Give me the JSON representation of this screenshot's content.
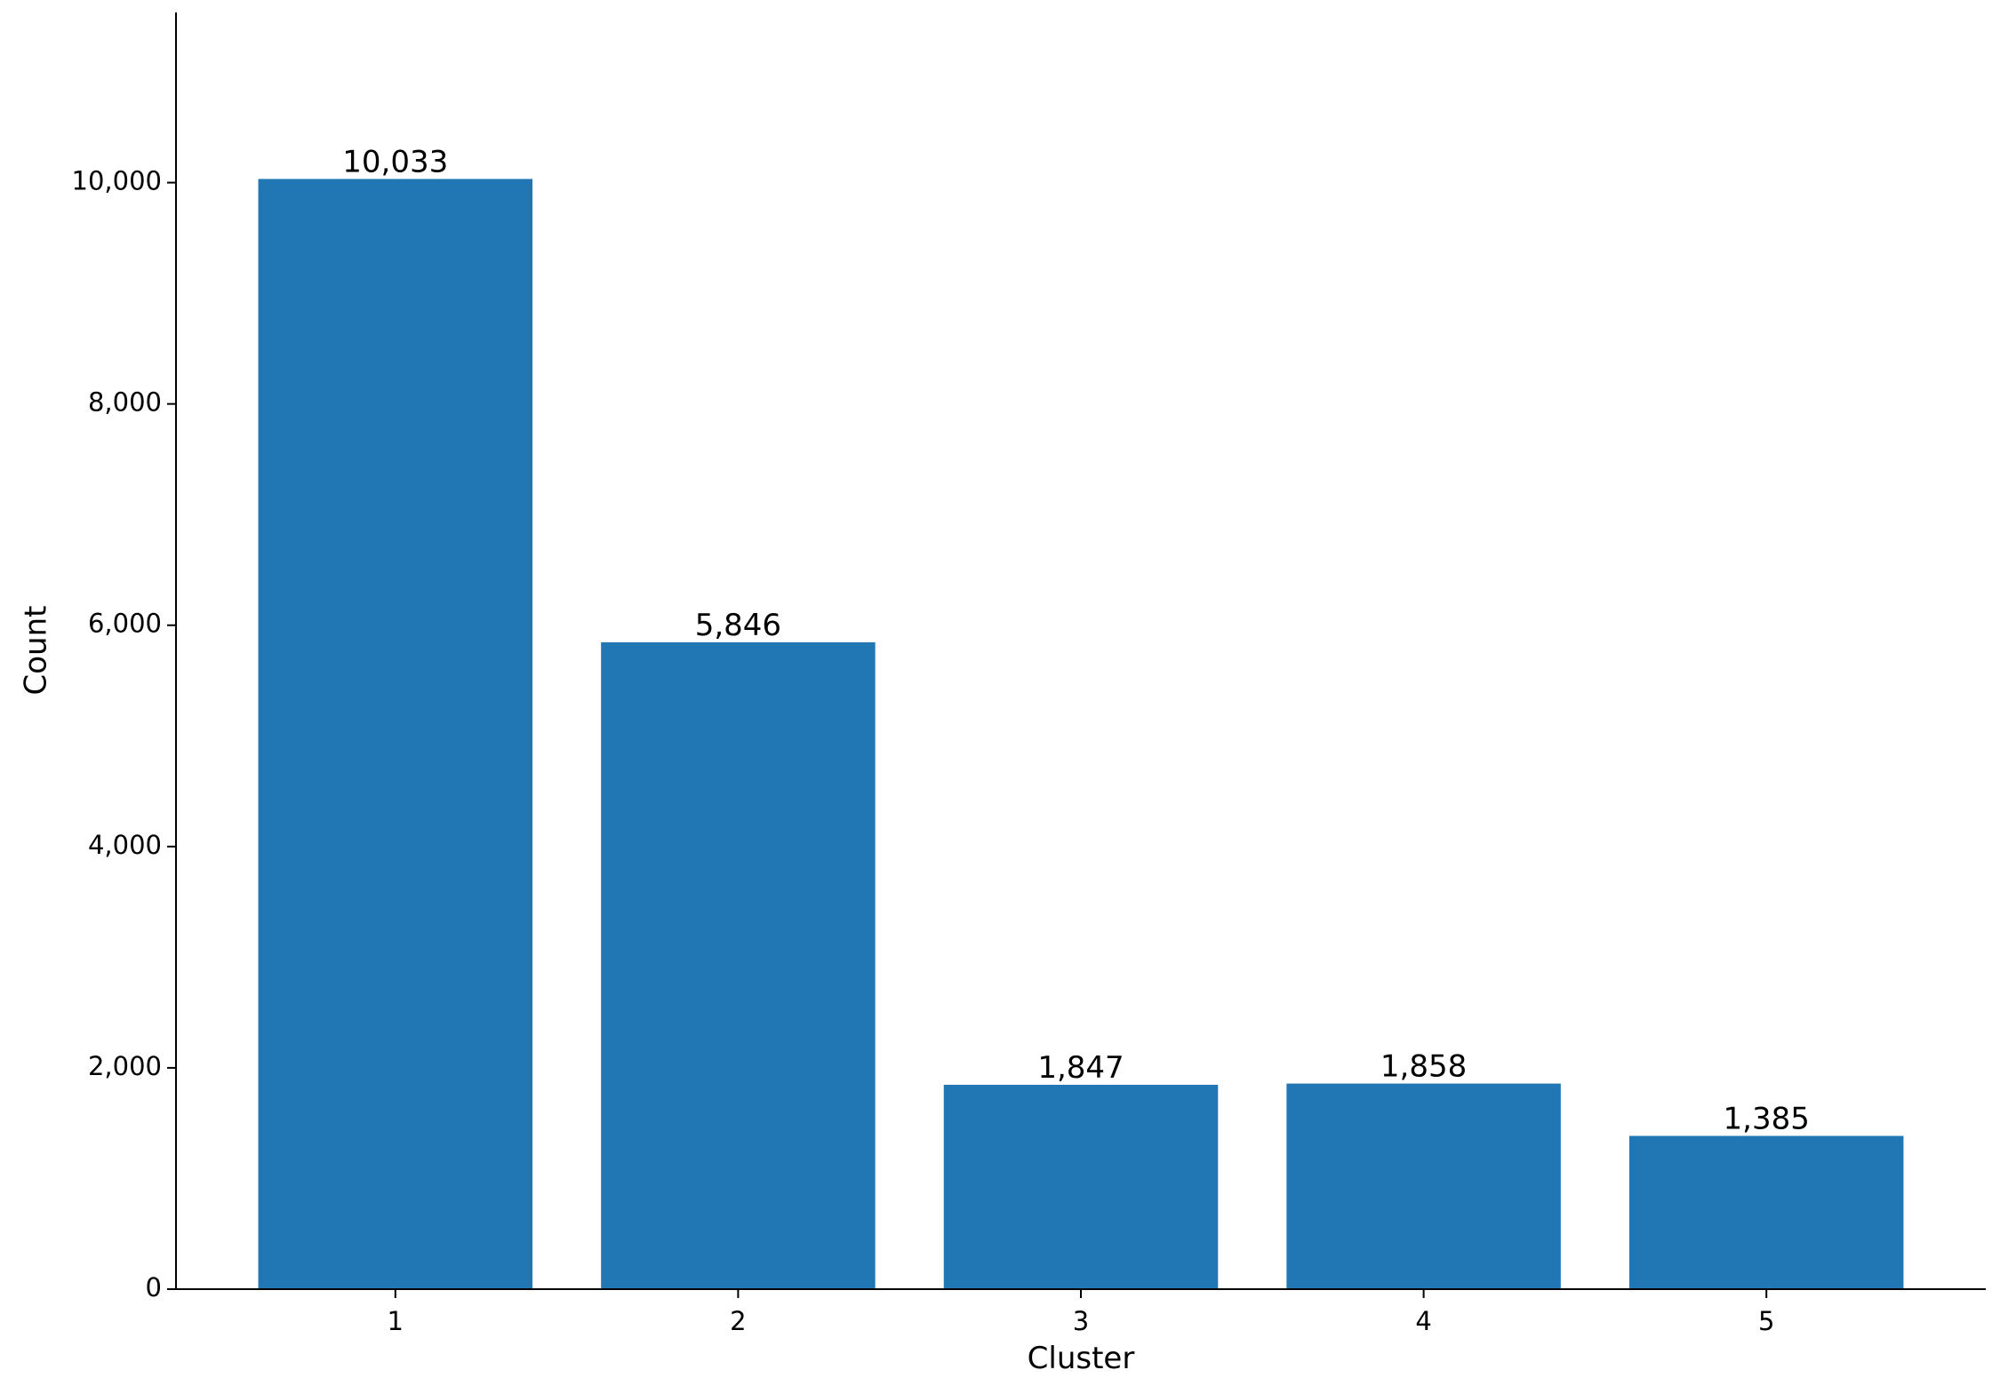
{
  "chart_data": {
    "type": "bar",
    "x_label": "Cluster",
    "y_label": "Count",
    "categories": [
      "1",
      "2",
      "3",
      "4",
      "5"
    ],
    "values": [
      10033,
      5846,
      1847,
      1858,
      1385
    ],
    "value_labels": [
      "10,033",
      "5,846",
      "1,847",
      "1,858",
      "1,385"
    ],
    "color": "#2077b4",
    "ylim": [
      0,
      11538
    ],
    "yticks": [
      0,
      {
        "value": 2000,
        "label": "2,000"
      },
      {
        "value": 4000,
        "label": "4,000"
      },
      {
        "value": 6000,
        "label": "6,000"
      },
      {
        "value": 8000,
        "label": "8,000"
      },
      {
        "value": 10000,
        "label": "10,000"
      }
    ],
    "grid": false
  }
}
